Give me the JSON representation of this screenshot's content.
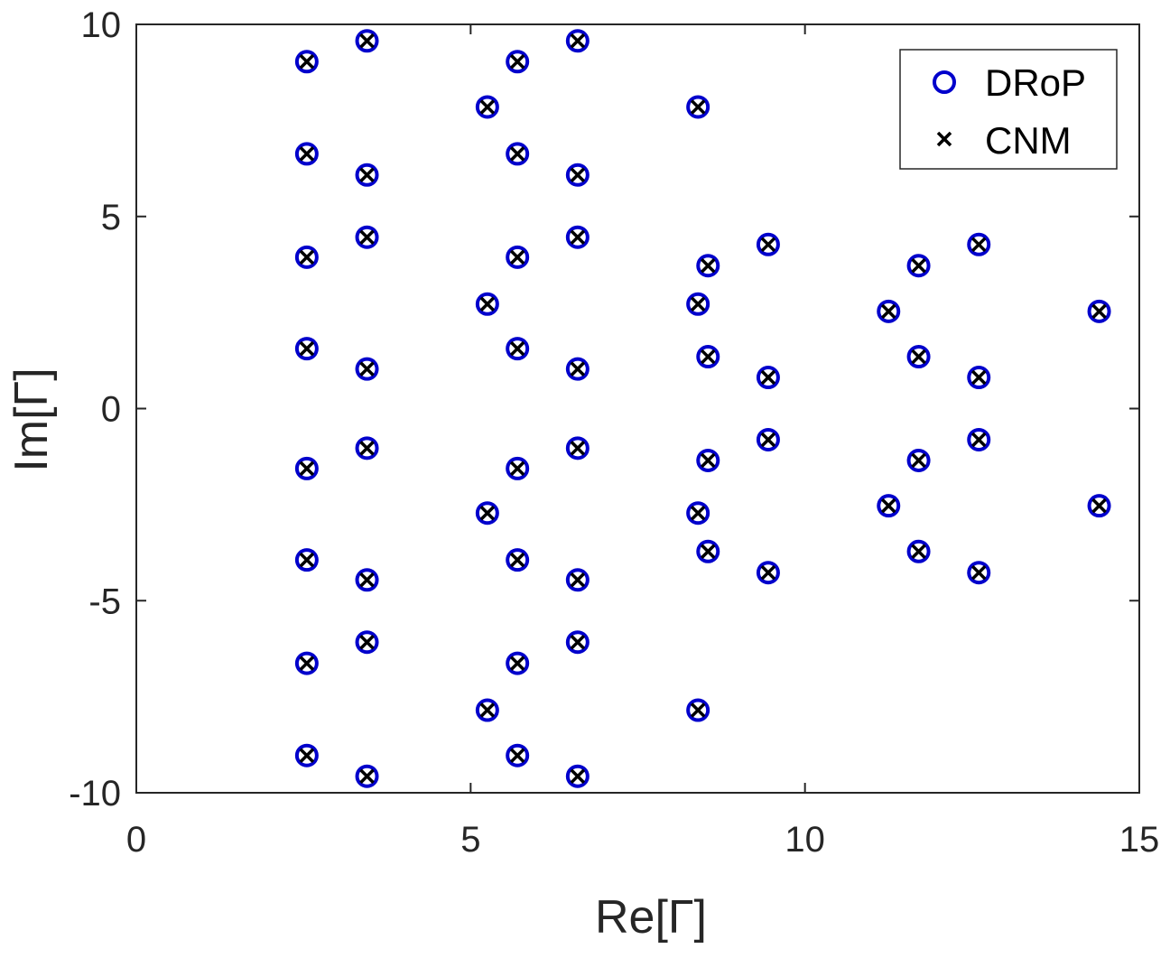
{
  "chart_data": {
    "type": "scatter",
    "title": "",
    "xlabel": "Re[Γ]",
    "ylabel": "Im[Γ]",
    "xlim": [
      0,
      15
    ],
    "ylim": [
      -10,
      10
    ],
    "xticks": [
      "0",
      "5",
      "10",
      "15"
    ],
    "yticks": [
      "-10",
      "-5",
      "0",
      "5",
      "10"
    ],
    "grid": false,
    "legend_position": "top-right",
    "colors": {
      "drop": "#0000cc",
      "cnm": "#000000",
      "axis": "#262626"
    },
    "series": [
      {
        "name": "DRoP",
        "marker": "circle",
        "points": [
          [
            2.55,
            9.03
          ],
          [
            2.55,
            6.63
          ],
          [
            2.55,
            3.94
          ],
          [
            2.55,
            1.56
          ],
          [
            2.55,
            -1.56
          ],
          [
            2.55,
            -3.94
          ],
          [
            2.55,
            -6.63
          ],
          [
            2.55,
            -9.03
          ],
          [
            3.45,
            9.57
          ],
          [
            3.45,
            6.08
          ],
          [
            3.45,
            4.46
          ],
          [
            3.45,
            1.03
          ],
          [
            3.45,
            -1.03
          ],
          [
            3.45,
            -4.46
          ],
          [
            3.45,
            -6.08
          ],
          [
            3.45,
            -9.57
          ],
          [
            5.25,
            7.85
          ],
          [
            5.25,
            2.72
          ],
          [
            5.25,
            -2.72
          ],
          [
            5.25,
            -7.85
          ],
          [
            5.7,
            9.03
          ],
          [
            5.7,
            6.63
          ],
          [
            5.7,
            3.94
          ],
          [
            5.7,
            1.56
          ],
          [
            5.7,
            -1.56
          ],
          [
            5.7,
            -3.94
          ],
          [
            5.7,
            -6.63
          ],
          [
            5.7,
            -9.03
          ],
          [
            6.6,
            9.57
          ],
          [
            6.6,
            6.08
          ],
          [
            6.6,
            4.46
          ],
          [
            6.6,
            1.03
          ],
          [
            6.6,
            -1.03
          ],
          [
            6.6,
            -4.46
          ],
          [
            6.6,
            -6.08
          ],
          [
            6.6,
            -9.57
          ],
          [
            8.4,
            7.85
          ],
          [
            8.4,
            2.72
          ],
          [
            8.4,
            -2.72
          ],
          [
            8.4,
            -7.85
          ],
          [
            8.55,
            3.72
          ],
          [
            8.55,
            1.35
          ],
          [
            8.55,
            -1.35
          ],
          [
            8.55,
            -3.72
          ],
          [
            9.45,
            4.27
          ],
          [
            9.45,
            0.81
          ],
          [
            9.45,
            -0.81
          ],
          [
            9.45,
            -4.27
          ],
          [
            11.25,
            2.53
          ],
          [
            11.25,
            -2.53
          ],
          [
            11.7,
            3.72
          ],
          [
            11.7,
            1.35
          ],
          [
            11.7,
            -1.35
          ],
          [
            11.7,
            -3.72
          ],
          [
            12.6,
            4.27
          ],
          [
            12.6,
            0.81
          ],
          [
            12.6,
            -0.81
          ],
          [
            12.6,
            -4.27
          ],
          [
            14.4,
            2.53
          ],
          [
            14.4,
            -2.53
          ]
        ]
      },
      {
        "name": "CNM",
        "marker": "x",
        "points": [
          [
            2.55,
            9.03
          ],
          [
            2.55,
            6.63
          ],
          [
            2.55,
            3.94
          ],
          [
            2.55,
            1.56
          ],
          [
            2.55,
            -1.56
          ],
          [
            2.55,
            -3.94
          ],
          [
            2.55,
            -6.63
          ],
          [
            2.55,
            -9.03
          ],
          [
            3.45,
            9.57
          ],
          [
            3.45,
            6.08
          ],
          [
            3.45,
            4.46
          ],
          [
            3.45,
            1.03
          ],
          [
            3.45,
            -1.03
          ],
          [
            3.45,
            -4.46
          ],
          [
            3.45,
            -6.08
          ],
          [
            3.45,
            -9.57
          ],
          [
            5.25,
            7.85
          ],
          [
            5.25,
            2.72
          ],
          [
            5.25,
            -2.72
          ],
          [
            5.25,
            -7.85
          ],
          [
            5.7,
            9.03
          ],
          [
            5.7,
            6.63
          ],
          [
            5.7,
            3.94
          ],
          [
            5.7,
            1.56
          ],
          [
            5.7,
            -1.56
          ],
          [
            5.7,
            -3.94
          ],
          [
            5.7,
            -6.63
          ],
          [
            5.7,
            -9.03
          ],
          [
            6.6,
            9.57
          ],
          [
            6.6,
            6.08
          ],
          [
            6.6,
            4.46
          ],
          [
            6.6,
            1.03
          ],
          [
            6.6,
            -1.03
          ],
          [
            6.6,
            -4.46
          ],
          [
            6.6,
            -6.08
          ],
          [
            6.6,
            -9.57
          ],
          [
            8.4,
            7.85
          ],
          [
            8.4,
            2.72
          ],
          [
            8.4,
            -2.72
          ],
          [
            8.4,
            -7.85
          ],
          [
            8.55,
            3.72
          ],
          [
            8.55,
            1.35
          ],
          [
            8.55,
            -1.35
          ],
          [
            8.55,
            -3.72
          ],
          [
            9.45,
            4.27
          ],
          [
            9.45,
            0.81
          ],
          [
            9.45,
            -0.81
          ],
          [
            9.45,
            -4.27
          ],
          [
            11.25,
            2.53
          ],
          [
            11.25,
            -2.53
          ],
          [
            11.7,
            3.72
          ],
          [
            11.7,
            1.35
          ],
          [
            11.7,
            -1.35
          ],
          [
            11.7,
            -3.72
          ],
          [
            12.6,
            4.27
          ],
          [
            12.6,
            0.81
          ],
          [
            12.6,
            -0.81
          ],
          [
            12.6,
            -4.27
          ],
          [
            14.4,
            2.53
          ],
          [
            14.4,
            -2.53
          ]
        ]
      }
    ]
  }
}
